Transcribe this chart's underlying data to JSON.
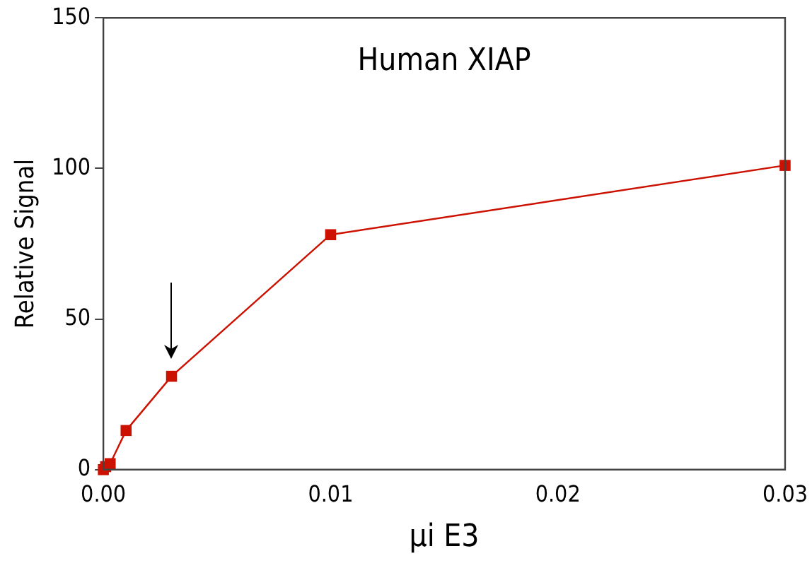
{
  "chart_data": {
    "type": "line",
    "title": "Human XIAP",
    "xlabel": "μi E3",
    "ylabel": "Relative Signal",
    "x": [
      0,
      0.0001,
      0.0003,
      0.001,
      0.003,
      0.01,
      0.03
    ],
    "series": [
      {
        "color": "#cc1100",
        "values": [
          0,
          1,
          2,
          13,
          31,
          78,
          101
        ]
      }
    ],
    "xlim": [
      0,
      0.03
    ],
    "xticks": [
      {
        "value": 0,
        "label": "0.00"
      },
      {
        "value": 0.01,
        "label": "0.01"
      },
      {
        "value": 0.02,
        "label": "0.02"
      },
      {
        "value": 0.03,
        "label": "0.03"
      }
    ],
    "ylim": [
      0,
      150
    ],
    "yticks": [
      0,
      50,
      100,
      150
    ],
    "grid": false,
    "legend": false,
    "marker": "square",
    "line_style": "solid"
  }
}
